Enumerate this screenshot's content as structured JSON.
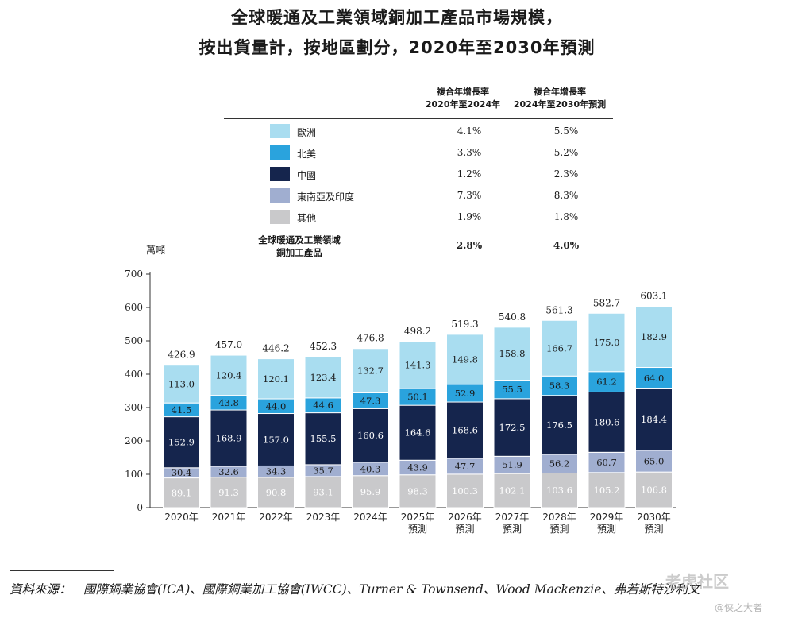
{
  "title_line1": "全球暖通及工業領域銅加工產品市場規模，",
  "title_line2": "按出貨量計，按地區劃分，2020年至2030年預測",
  "cagr_header1": "複合年增長率\n2020年至2024年",
  "cagr_header2": "複合年增長率\n2024年至2030年預測",
  "legend": [
    {
      "name": "歐洲",
      "color": "#a9ddf0",
      "cagr1": "4.1%",
      "cagr2": "5.5%"
    },
    {
      "name": "北美",
      "color": "#2aa3dd",
      "cagr1": "3.3%",
      "cagr2": "5.2%"
    },
    {
      "name": "中國",
      "color": "#15254d",
      "cagr1": "1.2%",
      "cagr2": "2.3%"
    },
    {
      "name": "東南亞及印度",
      "color": "#a0aed0",
      "cagr1": "7.3%",
      "cagr2": "8.3%"
    },
    {
      "name": "其他",
      "color": "#c9c9cb",
      "cagr1": "1.9%",
      "cagr2": "1.8%"
    }
  ],
  "total_label": "全球暖通及工業領域\n銅加工產品",
  "total_cagr1": "2.8%",
  "total_cagr2": "4.0%",
  "unit_label": "萬噸",
  "chart_data": {
    "type": "bar",
    "stacked": true,
    "categories": [
      "2020年",
      "2021年",
      "2022年",
      "2023年",
      "2024年",
      "2025年\n預測",
      "2026年\n預測",
      "2027年\n預測",
      "2028年\n預測",
      "2029年\n預測",
      "2030年\n預測"
    ],
    "series": [
      {
        "name": "其他",
        "color": "#c9c9cb",
        "values": [
          89.1,
          91.3,
          90.8,
          93.1,
          95.9,
          98.3,
          100.3,
          102.1,
          103.6,
          105.2,
          106.8
        ]
      },
      {
        "name": "東南亞及印度",
        "color": "#a0aed0",
        "values": [
          30.4,
          32.6,
          34.3,
          35.7,
          40.3,
          43.9,
          47.7,
          51.9,
          56.2,
          60.7,
          65.0
        ]
      },
      {
        "name": "中國",
        "color": "#15254d",
        "values": [
          152.9,
          168.9,
          157.0,
          155.5,
          160.6,
          164.6,
          168.6,
          172.5,
          176.5,
          180.6,
          184.4
        ]
      },
      {
        "name": "北美",
        "color": "#2aa3dd",
        "values": [
          41.5,
          43.8,
          44.0,
          44.6,
          47.3,
          50.1,
          52.9,
          55.5,
          58.3,
          61.2,
          64.0
        ]
      },
      {
        "name": "歐洲",
        "color": "#a9ddf0",
        "values": [
          113.0,
          120.4,
          120.1,
          123.4,
          132.7,
          141.3,
          149.8,
          158.8,
          166.7,
          175.0,
          182.9
        ]
      }
    ],
    "totals": [
      426.9,
      457.0,
      446.2,
      452.3,
      476.8,
      498.2,
      519.3,
      540.8,
      561.3,
      582.7,
      603.1
    ],
    "ylim": [
      0,
      700
    ],
    "yticks": [
      0,
      100,
      200,
      300,
      400,
      500,
      600,
      700
    ],
    "ylabel": "萬噸",
    "xlabel": ""
  },
  "source": "資料來源：　國際銅業協會(ICA)、國際銅業加工協會(IWCC)、Turner & Townsend、Wood Mackenzie、弗若斯特沙利文",
  "watermark_main": "老虎社区",
  "watermark_sub": "@侠之大者"
}
